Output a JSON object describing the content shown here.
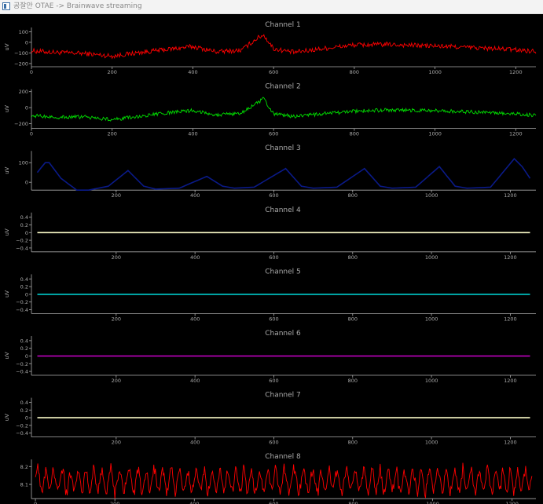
{
  "window": {
    "title": "공잘안 OTAE -> Brainwave streaming"
  },
  "chart_data": [
    {
      "type": "line",
      "title": "Channel 1",
      "ylabel": "uV",
      "color": "#ff0000",
      "xlim": [
        0,
        1250
      ],
      "ylim": [
        -230,
        140
      ],
      "xticks": [
        0,
        200,
        400,
        600,
        800,
        1000,
        1200
      ],
      "yticks": [
        {
          "v": 100,
          "l": "100"
        },
        {
          "v": 0,
          "l": "0"
        },
        {
          "v": -100,
          "l": "−100"
        },
        {
          "v": -200,
          "l": "−200"
        }
      ],
      "x": [
        0,
        60,
        130,
        200,
        270,
        330,
        400,
        460,
        520,
        560,
        575,
        600,
        650,
        720,
        800,
        880,
        960,
        1040,
        1120,
        1180,
        1250
      ],
      "y": [
        -80,
        -95,
        -105,
        -130,
        -95,
        -70,
        -40,
        -90,
        -75,
        40,
        70,
        -60,
        -95,
        -60,
        -25,
        -20,
        -30,
        -40,
        -55,
        -65,
        -85
      ],
      "noise": 45
    },
    {
      "type": "line",
      "title": "Channel 2",
      "ylabel": "uV",
      "color": "#00dd00",
      "xlim": [
        0,
        1250
      ],
      "ylim": [
        -260,
        230
      ],
      "xticks": [
        0,
        200,
        400,
        600,
        800,
        1000,
        1200
      ],
      "yticks": [
        {
          "v": 200,
          "l": "200"
        },
        {
          "v": 0,
          "l": "0"
        },
        {
          "v": -200,
          "l": "−200"
        }
      ],
      "x": [
        0,
        60,
        130,
        200,
        270,
        330,
        400,
        460,
        520,
        560,
        575,
        600,
        650,
        720,
        800,
        880,
        960,
        1040,
        1120,
        1180,
        1250
      ],
      "y": [
        -100,
        -120,
        -115,
        -150,
        -110,
        -70,
        -35,
        -90,
        -70,
        60,
        110,
        -80,
        -110,
        -80,
        -45,
        -30,
        -35,
        -45,
        -60,
        -75,
        -95
      ],
      "noise": 45
    },
    {
      "type": "line",
      "title": "Channel 3",
      "ylabel": "uV",
      "color": "#0a1a88",
      "xlim": [
        -15,
        1265
      ],
      "ylim": [
        -40,
        160
      ],
      "xticks": [
        200,
        400,
        600,
        800,
        1000,
        1200
      ],
      "yticks": [
        {
          "v": 100,
          "l": "100"
        },
        {
          "v": 0,
          "l": "0"
        }
      ],
      "x": [
        0,
        20,
        30,
        60,
        100,
        130,
        180,
        230,
        270,
        300,
        360,
        430,
        470,
        500,
        550,
        630,
        670,
        700,
        760,
        830,
        870,
        900,
        960,
        1020,
        1060,
        1090,
        1150,
        1210,
        1230,
        1250
      ],
      "y": [
        50,
        100,
        100,
        20,
        -40,
        -40,
        -20,
        60,
        -20,
        -35,
        -30,
        30,
        -20,
        -30,
        -25,
        70,
        -20,
        -30,
        -25,
        70,
        -20,
        -30,
        -25,
        80,
        -20,
        -30,
        -25,
        120,
        80,
        20
      ],
      "noise": 0
    },
    {
      "type": "line",
      "title": "Channel 4",
      "ylabel": "uV",
      "color": "#ffffcc",
      "xlim": [
        -15,
        1265
      ],
      "ylim": [
        -0.5,
        0.52
      ],
      "xticks": [
        200,
        400,
        600,
        800,
        1000,
        1200
      ],
      "yticks": [
        {
          "v": 0.4,
          "l": "0.4"
        },
        {
          "v": 0.2,
          "l": "0.2"
        },
        {
          "v": 0,
          "l": "0"
        },
        {
          "v": -0.2,
          "l": "−0.2"
        },
        {
          "v": -0.4,
          "l": "−0.4"
        }
      ],
      "x": [
        0,
        1250
      ],
      "y": [
        0,
        0
      ],
      "noise": 0
    },
    {
      "type": "line",
      "title": "Channel 5",
      "ylabel": "uV",
      "color": "#00cccc",
      "xlim": [
        -15,
        1265
      ],
      "ylim": [
        -0.5,
        0.52
      ],
      "xticks": [
        200,
        400,
        600,
        800,
        1000,
        1200
      ],
      "yticks": [
        {
          "v": 0.4,
          "l": "0.4"
        },
        {
          "v": 0.2,
          "l": "0.2"
        },
        {
          "v": 0,
          "l": "0"
        },
        {
          "v": -0.2,
          "l": "−0.2"
        },
        {
          "v": -0.4,
          "l": "−0.4"
        }
      ],
      "x": [
        0,
        1250
      ],
      "y": [
        0,
        0
      ],
      "noise": 0
    },
    {
      "type": "line",
      "title": "Channel 6",
      "ylabel": "uV",
      "color": "#cc00cc",
      "xlim": [
        -15,
        1265
      ],
      "ylim": [
        -0.5,
        0.52
      ],
      "xticks": [
        200,
        400,
        600,
        800,
        1000,
        1200
      ],
      "yticks": [
        {
          "v": 0.4,
          "l": "0.4"
        },
        {
          "v": 0.2,
          "l": "0.2"
        },
        {
          "v": 0,
          "l": "0"
        },
        {
          "v": -0.2,
          "l": "−0.2"
        },
        {
          "v": -0.4,
          "l": "−0.4"
        }
      ],
      "x": [
        0,
        1250
      ],
      "y": [
        0,
        0
      ],
      "noise": 0
    },
    {
      "type": "line",
      "title": "Channel 7",
      "ylabel": "uV",
      "color": "#ffffcc",
      "xlim": [
        -15,
        1265
      ],
      "ylim": [
        -0.5,
        0.52
      ],
      "xticks": [
        200,
        400,
        600,
        800,
        1000,
        1200
      ],
      "yticks": [
        {
          "v": 0.4,
          "l": "0.4"
        },
        {
          "v": 0.2,
          "l": "0.2"
        },
        {
          "v": 0,
          "l": "0"
        },
        {
          "v": -0.2,
          "l": "−0.2"
        },
        {
          "v": -0.4,
          "l": "−0.4"
        }
      ],
      "x": [
        0,
        1250
      ],
      "y": [
        0,
        0
      ],
      "noise": 0
    },
    {
      "type": "line",
      "title": "Channel 8",
      "ylabel": "",
      "color": "#ff0000",
      "xlim": [
        -10,
        1260
      ],
      "ylim": [
        8.02,
        8.24
      ],
      "xticks": [
        0,
        200,
        400,
        600,
        800,
        1000,
        1200
      ],
      "yticks": [
        {
          "v": 8.2,
          "l": "8.2"
        },
        {
          "v": 8.1,
          "l": "8.1"
        }
      ],
      "x": [
        0,
        1250
      ],
      "y": [
        8.12,
        8.12
      ],
      "noise": 0.1,
      "noise_mode": "wave"
    }
  ]
}
